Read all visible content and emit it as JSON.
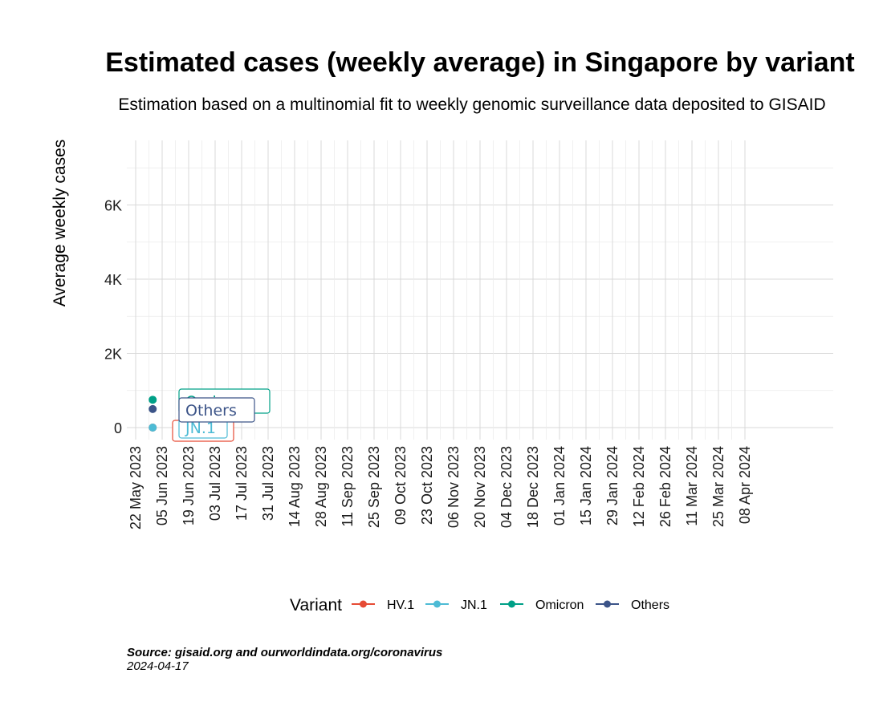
{
  "chart_data": {
    "type": "line",
    "title": "Estimated cases (weekly average) in Singapore by variant",
    "subtitle": "Estimation based on a multinomial fit to weekly genomic surveillance data deposited to GISAID",
    "xlabel": "",
    "ylabel": "Average weekly cases",
    "ylim": [
      0,
      7000
    ],
    "y_ticks": [
      0,
      2000,
      4000,
      6000
    ],
    "y_tick_labels": [
      "0",
      "2K",
      "4K",
      "6K"
    ],
    "x_ticks": [
      "2023-05-22",
      "2023-06-05",
      "2023-06-19",
      "2023-07-03",
      "2023-07-17",
      "2023-07-31",
      "2023-08-14",
      "2023-08-28",
      "2023-09-11",
      "2023-09-25",
      "2023-10-09",
      "2023-10-23",
      "2023-11-06",
      "2023-11-20",
      "2023-12-04",
      "2023-12-18",
      "2024-01-01",
      "2024-01-15",
      "2024-01-29",
      "2024-02-12",
      "2024-02-26",
      "2024-03-11",
      "2024-03-25",
      "2024-04-08"
    ],
    "x_tick_labels": [
      "22 May 2023",
      "05 Jun 2023",
      "19 Jun 2023",
      "03 Jul 2023",
      "17 Jul 2023",
      "31 Jul 2023",
      "14 Aug 2023",
      "28 Aug 2023",
      "11 Sep 2023",
      "25 Sep 2023",
      "09 Oct 2023",
      "23 Oct 2023",
      "06 Nov 2023",
      "20 Nov 2023",
      "04 Dec 2023",
      "18 Dec 2023",
      "01 Jan 2024",
      "15 Jan 2024",
      "29 Jan 2024",
      "12 Feb 2024",
      "26 Feb 2024",
      "11 Mar 2024",
      "25 Mar 2024",
      "08 Apr 2024"
    ],
    "xlim": [
      "2023-05-19",
      "2024-04-09"
    ],
    "grid": true,
    "legend_position": "bottom",
    "legend_title": "Variant",
    "series": [
      {
        "name": "HV.1",
        "color": "#E64B35",
        "points": [
          {
            "x": "2023-05-31",
            "y": 0
          }
        ]
      },
      {
        "name": "JN.1",
        "color": "#4DBBD5",
        "points": [
          {
            "x": "2023-05-31",
            "y": 0
          }
        ]
      },
      {
        "name": "Omicron",
        "color": "#00A087",
        "points": [
          {
            "x": "2023-05-31",
            "y": 750
          }
        ]
      },
      {
        "name": "Others",
        "color": "#3C5488",
        "points": [
          {
            "x": "2023-05-31",
            "y": 500
          }
        ]
      }
    ],
    "point_labels": [
      {
        "series": "HV.1",
        "text": "HV.1"
      },
      {
        "series": "JN.1",
        "text": "JN.1"
      },
      {
        "series": "Omicron",
        "text": "Omicron"
      },
      {
        "series": "Others",
        "text": "Others"
      }
    ]
  },
  "caption": {
    "source": "Source: gisaid.org and ourworldindata.org/coronavirus",
    "date": "2024-04-17"
  }
}
